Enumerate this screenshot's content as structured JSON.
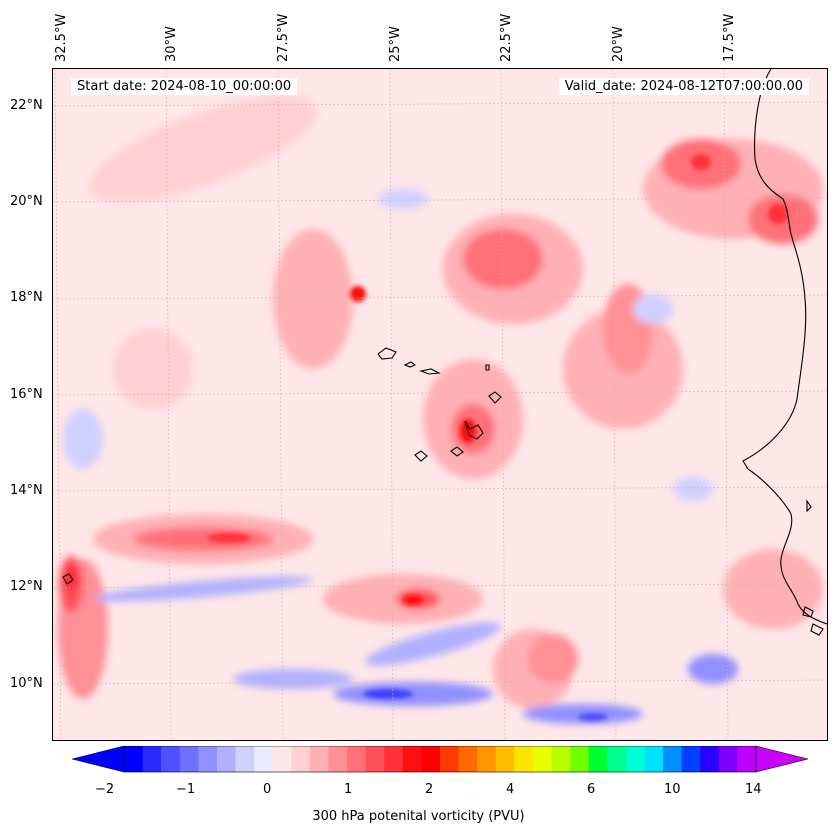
{
  "header": {
    "start_date": "Start date: 2024-08-10_00:00:00",
    "valid_date": "Valid_date: 2024-08-12T07:00:00.00"
  },
  "longitude_labels": [
    "32.5°W",
    "30°W",
    "27.5°W",
    "25°W",
    "22.5°W",
    "20°W",
    "17.5°W"
  ],
  "latitude_labels": [
    "22°N",
    "20°N",
    "18°N",
    "16°N",
    "14°N",
    "12°N",
    "10°N"
  ],
  "colorbar": {
    "label": "300 hPa potenital vorticity (PVU)",
    "tick_labels": [
      "−2",
      "−1",
      "0",
      "1",
      "2",
      "4",
      "6",
      "10",
      "14"
    ],
    "colors": [
      "#0000ff",
      "#2a2aff",
      "#5050ff",
      "#7070ff",
      "#9090ff",
      "#b0b0ff",
      "#d0d0ff",
      "#ececff",
      "#ffe6e8",
      "#ffcfd2",
      "#ffb0b5",
      "#ff9096",
      "#ff7078",
      "#ff5058",
      "#ff303a",
      "#ff1010",
      "#ff0000",
      "#ff3a00",
      "#ff6a00",
      "#ff9500",
      "#ffbd00",
      "#ffe500",
      "#e8ff00",
      "#b5ff00",
      "#70ff00",
      "#00ff30",
      "#00ff90",
      "#00ffd0",
      "#00e0ff",
      "#0090ff",
      "#0040ff",
      "#2a00ff",
      "#8000ff",
      "#c000ff"
    ],
    "extend_low_color": "#0000ff",
    "extend_high_color": "#c800ff"
  }
}
